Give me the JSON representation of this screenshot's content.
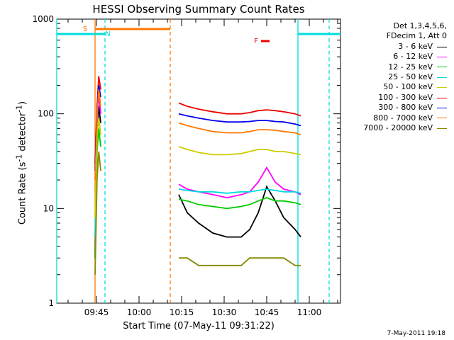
{
  "chart_data": {
    "type": "line",
    "title": "HESSI Observing Summary Count Rates",
    "xlabel": "Start Time (07-May-11 09:31:22)",
    "ylabel": "Count Rate (s",
    "ylabel_sup1": "-1",
    "ylabel_mid": " detector",
    "ylabel_sup2": "-1",
    "ylabel_end": ")",
    "y_scale": "log",
    "ylim": [
      1,
      1000
    ],
    "xlim_minutes_after_0931": [
      0,
      100
    ],
    "x_ticks": [
      {
        "minute": 14,
        "label": "09:45"
      },
      {
        "minute": 29,
        "label": "10:00"
      },
      {
        "minute": 44,
        "label": "10:15"
      },
      {
        "minute": 59,
        "label": "10:30"
      },
      {
        "minute": 74,
        "label": "10:45"
      },
      {
        "minute": 89,
        "label": "11:00"
      }
    ],
    "y_ticks": [
      {
        "value": 1,
        "label": "1"
      },
      {
        "value": 10,
        "label": "10"
      },
      {
        "value": 100,
        "label": "100"
      },
      {
        "value": 1000,
        "label": "1000"
      }
    ],
    "legend_header": [
      "Det 1,3,4,5,6,",
      "FDecim 1, Att 0"
    ],
    "series": [
      {
        "name": "3 - 6 keV",
        "color": "#000000",
        "segments": [
          [
            [
              13.5,
              3
            ],
            [
              14.2,
              60
            ],
            [
              14.8,
              120
            ],
            [
              15.5,
              80
            ]
          ],
          [
            [
              43,
              14
            ],
            [
              46,
              9
            ],
            [
              50,
              7
            ],
            [
              55,
              5.5
            ],
            [
              60,
              5
            ],
            [
              65,
              5
            ],
            [
              68,
              6
            ],
            [
              71,
              9
            ],
            [
              74,
              17
            ],
            [
              77,
              12
            ],
            [
              80,
              8
            ],
            [
              84,
              6
            ],
            [
              86,
              5
            ]
          ]
        ]
      },
      {
        "name": "6 - 12 keV",
        "color": "#ff00ff",
        "segments": [
          [
            [
              13.5,
              4
            ],
            [
              14.2,
              80
            ],
            [
              14.8,
              160
            ],
            [
              15.5,
              100
            ]
          ],
          [
            [
              43,
              18
            ],
            [
              46,
              16
            ],
            [
              50,
              15
            ],
            [
              55,
              14
            ],
            [
              60,
              13
            ],
            [
              65,
              14
            ],
            [
              68,
              15
            ],
            [
              71,
              19
            ],
            [
              74,
              27
            ],
            [
              77,
              19
            ],
            [
              80,
              16
            ],
            [
              84,
              15
            ],
            [
              86,
              14
            ]
          ]
        ]
      },
      {
        "name": "12 - 25 keV",
        "color": "#00cc00",
        "segments": [
          [
            [
              13.5,
              3
            ],
            [
              14.2,
              40
            ],
            [
              14.8,
              70
            ],
            [
              15.5,
              45
            ]
          ],
          [
            [
              43,
              12.5
            ],
            [
              46,
              12
            ],
            [
              50,
              11
            ],
            [
              55,
              10.5
            ],
            [
              60,
              10
            ],
            [
              65,
              10.5
            ],
            [
              68,
              11
            ],
            [
              71,
              12
            ],
            [
              74,
              13
            ],
            [
              77,
              12
            ],
            [
              80,
              12
            ],
            [
              84,
              11.5
            ],
            [
              86,
              11
            ]
          ]
        ]
      },
      {
        "name": "25 - 50 keV",
        "color": "#00dddd",
        "segments": [
          [
            [
              13.5,
              5
            ],
            [
              14.2,
              60
            ],
            [
              14.8,
              90
            ],
            [
              15.5,
              60
            ]
          ],
          [
            [
              43,
              16
            ],
            [
              46,
              15.5
            ],
            [
              50,
              15
            ],
            [
              55,
              15
            ],
            [
              60,
              14.5
            ],
            [
              65,
              15
            ],
            [
              68,
              15
            ],
            [
              71,
              15.5
            ],
            [
              74,
              16
            ],
            [
              77,
              15.5
            ],
            [
              80,
              15
            ],
            [
              84,
              15
            ],
            [
              86,
              14.5
            ]
          ]
        ]
      },
      {
        "name": "50 - 100 keV",
        "color": "#cccc00",
        "segments": [
          [
            [
              13.5,
              8
            ],
            [
              14.2,
              60
            ],
            [
              14.8,
              90
            ],
            [
              15.5,
              60
            ]
          ],
          [
            [
              43,
              45
            ],
            [
              46,
              42
            ],
            [
              50,
              39
            ],
            [
              55,
              37
            ],
            [
              60,
              37
            ],
            [
              65,
              38
            ],
            [
              68,
              40
            ],
            [
              71,
              42
            ],
            [
              74,
              42
            ],
            [
              77,
              40
            ],
            [
              80,
              40
            ],
            [
              84,
              38
            ],
            [
              86,
              37
            ]
          ]
        ]
      },
      {
        "name": "100 - 300 keV",
        "color": "#ee0000",
        "segments": [
          [
            [
              13.5,
              30
            ],
            [
              14.2,
              120
            ],
            [
              14.8,
              250
            ],
            [
              15.5,
              180
            ]
          ],
          [
            [
              43,
              130
            ],
            [
              46,
              120
            ],
            [
              50,
              112
            ],
            [
              55,
              105
            ],
            [
              60,
              100
            ],
            [
              65,
              100
            ],
            [
              68,
              103
            ],
            [
              71,
              108
            ],
            [
              74,
              110
            ],
            [
              77,
              108
            ],
            [
              80,
              105
            ],
            [
              84,
              100
            ],
            [
              86,
              95
            ]
          ]
        ]
      },
      {
        "name": "300 - 800 keV",
        "color": "#0000ee",
        "segments": [
          [
            [
              13.5,
              25
            ],
            [
              14.2,
              100
            ],
            [
              14.8,
              200
            ],
            [
              15.5,
              150
            ]
          ],
          [
            [
              43,
              100
            ],
            [
              46,
              95
            ],
            [
              50,
              90
            ],
            [
              55,
              85
            ],
            [
              60,
              82
            ],
            [
              65,
              82
            ],
            [
              68,
              83
            ],
            [
              71,
              85
            ],
            [
              74,
              85
            ],
            [
              77,
              83
            ],
            [
              80,
              82
            ],
            [
              84,
              78
            ],
            [
              86,
              75
            ]
          ]
        ]
      },
      {
        "name": "800 - 7000 keV",
        "color": "#ff7700",
        "segments": [
          [
            [
              13.5,
              20
            ],
            [
              14.2,
              90
            ],
            [
              14.8,
              180
            ],
            [
              15.5,
              120
            ]
          ],
          [
            [
              43,
              80
            ],
            [
              46,
              75
            ],
            [
              50,
              70
            ],
            [
              55,
              65
            ],
            [
              60,
              63
            ],
            [
              65,
              63
            ],
            [
              68,
              65
            ],
            [
              71,
              68
            ],
            [
              74,
              68
            ],
            [
              77,
              67
            ],
            [
              80,
              65
            ],
            [
              84,
              63
            ],
            [
              86,
              60
            ]
          ]
        ]
      },
      {
        "name": "7000 - 20000 keV",
        "color": "#888800",
        "segments": [
          [
            [
              13.5,
              2
            ],
            [
              14.2,
              20
            ],
            [
              14.8,
              40
            ],
            [
              15.5,
              25
            ]
          ],
          [
            [
              43,
              3
            ],
            [
              46,
              3
            ],
            [
              50,
              2.5
            ],
            [
              55,
              2.5
            ],
            [
              60,
              2.5
            ],
            [
              65,
              2.5
            ],
            [
              68,
              3
            ],
            [
              71,
              3
            ],
            [
              74,
              3
            ],
            [
              77,
              3
            ],
            [
              80,
              3
            ],
            [
              84,
              2.5
            ],
            [
              86,
              2.5
            ]
          ]
        ]
      }
    ],
    "flag_bars": [
      {
        "label": "S",
        "color": "#ff7700",
        "start": 13.5,
        "end": 40
      },
      {
        "label": "N",
        "color": "#00dddd",
        "start": 0,
        "end": 17
      },
      {
        "label": "",
        "color": "#00dddd",
        "start": 85,
        "end": 100
      },
      {
        "label": "F",
        "color": "#ee0000",
        "start": 72,
        "end": 75
      }
    ],
    "markers": [
      {
        "color": "#00dddd",
        "minute": 0,
        "style": "solid"
      },
      {
        "color": "#ff7700",
        "minute": 13.5,
        "style": "solid"
      },
      {
        "color": "#00dddd",
        "minute": 17,
        "style": "dashed"
      },
      {
        "color": "#ff7700",
        "minute": 40,
        "style": "dashed"
      },
      {
        "color": "#00dddd",
        "minute": 85,
        "style": "solid"
      },
      {
        "color": "#00dddd",
        "minute": 96,
        "style": "dashed"
      }
    ]
  },
  "footer": "7-May-2011 19:18"
}
